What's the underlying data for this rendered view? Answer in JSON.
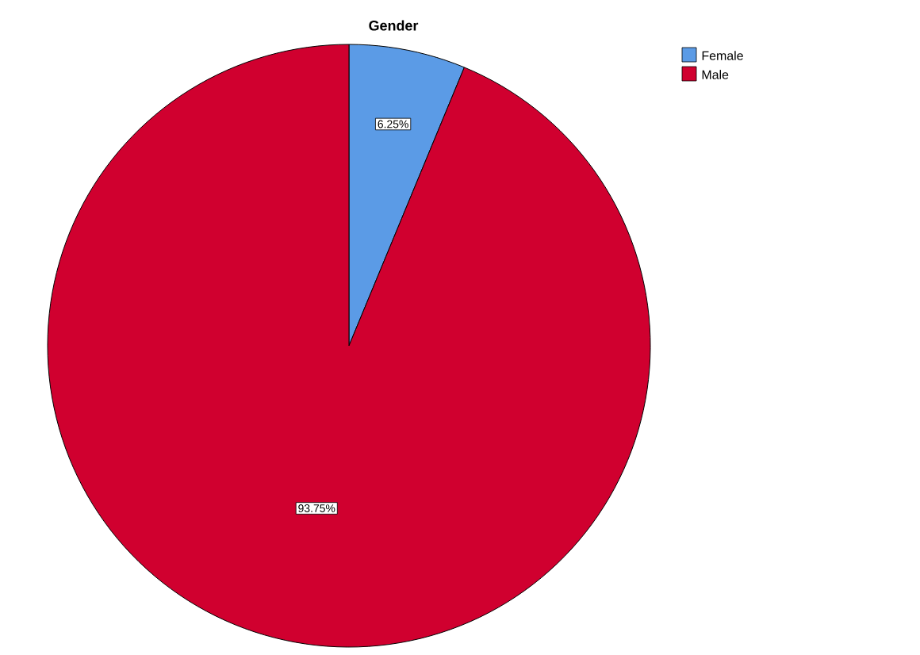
{
  "chart_data": {
    "type": "pie",
    "title": "Gender",
    "categories": [
      "Female",
      "Male"
    ],
    "values": [
      6.25,
      93.75
    ],
    "colors": [
      "#5b9be6",
      "#d0002f"
    ],
    "value_labels": [
      "6.25%",
      "93.75%"
    ],
    "legend": "top right"
  }
}
